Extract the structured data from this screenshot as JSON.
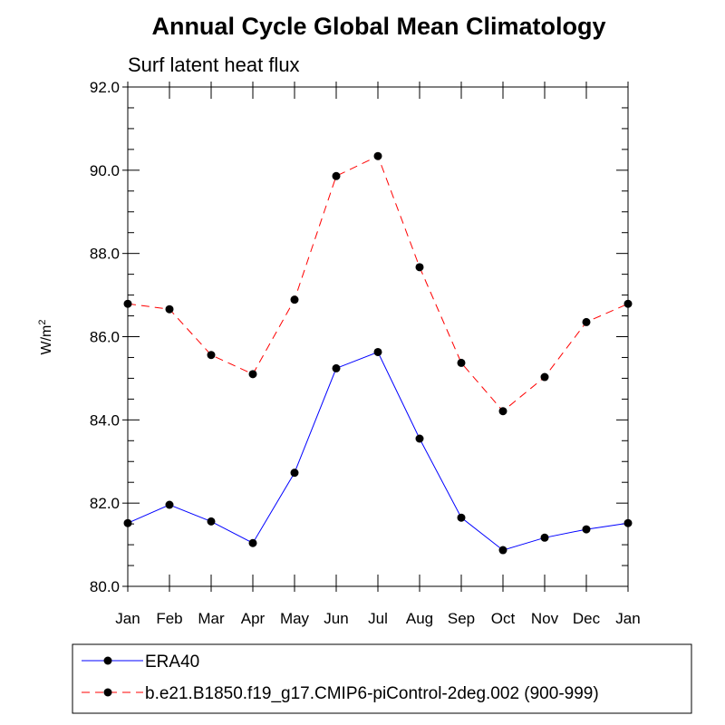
{
  "chart_data": {
    "type": "line",
    "title": "Annual Cycle Global Mean Climatology",
    "subtitle": "Surf latent heat flux",
    "ylabel_base": "W/m",
    "ylabel_sup": "2",
    "categories": [
      "Jan",
      "Feb",
      "Mar",
      "Apr",
      "May",
      "Jun",
      "Jul",
      "Aug",
      "Sep",
      "Oct",
      "Nov",
      "Dec",
      "Jan"
    ],
    "ylim": [
      80.0,
      92.0
    ],
    "yticks": [
      "80.0",
      "82.0",
      "84.0",
      "86.0",
      "88.0",
      "90.0",
      "92.0"
    ],
    "ytick_values": [
      80,
      82,
      84,
      86,
      88,
      90,
      92
    ],
    "series": [
      {
        "name": "ERA40",
        "color": "#0000ff",
        "dash": "solid",
        "values": [
          81.52,
          81.96,
          81.56,
          81.04,
          82.73,
          85.24,
          85.63,
          83.55,
          81.65,
          80.87,
          81.17,
          81.37,
          81.52
        ]
      },
      {
        "name": "b.e21.B1850.f19_g17.CMIP6-piControl-2deg.002 (900-999)",
        "color": "#ff0000",
        "dash": "dashed",
        "values": [
          86.79,
          86.66,
          85.56,
          85.1,
          86.89,
          89.86,
          90.34,
          87.67,
          85.37,
          84.21,
          85.03,
          86.35,
          86.79
        ]
      }
    ],
    "legend_position": "bottom",
    "grid": false
  }
}
